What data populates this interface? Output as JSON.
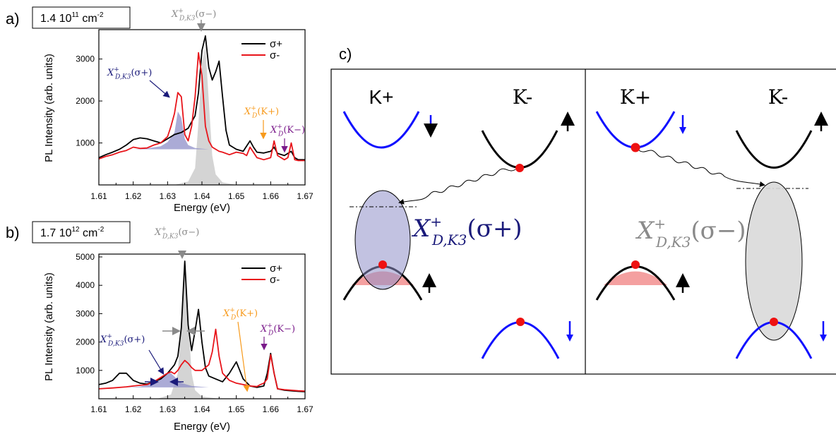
{
  "colors": {
    "black_series": "#000000",
    "red_series": "#e8141a",
    "gray_peak": "#cfcfcf",
    "blue_fill": "#8f8fc8",
    "navy": "#1a1a7a",
    "orange": "#f79a1c",
    "purple": "#7a1a8a",
    "gray_text": "#8a8a8a",
    "blue_band": "#1010ff",
    "pink_fill": "#f4a0a0",
    "red_dot": "#ee1111"
  },
  "chart_data": [
    {
      "type": "line",
      "panel": "a)",
      "density_label": {
        "base": "1.4 10",
        "exp": "11",
        "unit": " cm",
        "unit_exp": "-2"
      },
      "xlabel": "Energy (eV)",
      "ylabel": "PL Intensity (arb. units)",
      "xlim": [
        1.61,
        1.67
      ],
      "ylim": [
        0,
        3700
      ],
      "xticks": [
        "1.61",
        "1.62",
        "1.63",
        "1.64",
        "1.65",
        "1.66",
        "1.67"
      ],
      "yticks": [
        1000,
        2000,
        3000
      ],
      "legend": {
        "placement": "top-right",
        "entries": [
          "σ+",
          "σ-"
        ]
      },
      "series": [
        {
          "name": "σ+",
          "color": "black",
          "x": [
            1.61,
            1.612,
            1.614,
            1.616,
            1.618,
            1.62,
            1.622,
            1.624,
            1.626,
            1.628,
            1.63,
            1.632,
            1.634,
            1.636,
            1.637,
            1.638,
            1.639,
            1.64,
            1.641,
            1.642,
            1.643,
            1.644,
            1.645,
            1.646,
            1.647,
            1.648,
            1.65,
            1.652,
            1.654,
            1.655,
            1.656,
            1.658,
            1.66,
            1.661,
            1.662,
            1.664,
            1.666,
            1.667,
            1.668,
            1.67
          ],
          "y": [
            650,
            720,
            780,
            850,
            950,
            1080,
            1120,
            1100,
            1050,
            1000,
            1100,
            1200,
            1250,
            1350,
            1500,
            1650,
            2200,
            3200,
            3550,
            2800,
            2500,
            2700,
            2950,
            2100,
            1300,
            950,
            850,
            800,
            1050,
            900,
            780,
            760,
            800,
            900,
            750,
            700,
            800,
            650,
            600,
            600
          ]
        },
        {
          "name": "σ-",
          "color": "red",
          "x": [
            1.61,
            1.612,
            1.614,
            1.616,
            1.618,
            1.62,
            1.622,
            1.624,
            1.626,
            1.628,
            1.63,
            1.631,
            1.632,
            1.633,
            1.634,
            1.635,
            1.636,
            1.637,
            1.638,
            1.639,
            1.64,
            1.641,
            1.642,
            1.643,
            1.644,
            1.645,
            1.646,
            1.648,
            1.65,
            1.652,
            1.653,
            1.654,
            1.656,
            1.658,
            1.66,
            1.661,
            1.662,
            1.664,
            1.665,
            1.666,
            1.667,
            1.668,
            1.67
          ],
          "y": [
            620,
            680,
            720,
            780,
            820,
            900,
            870,
            880,
            950,
            1000,
            1150,
            1400,
            1700,
            2200,
            2100,
            1200,
            1050,
            1400,
            2100,
            3150,
            2600,
            1400,
            1050,
            900,
            850,
            800,
            780,
            720,
            780,
            750,
            700,
            900,
            650,
            600,
            650,
            1050,
            700,
            600,
            650,
            1000,
            600,
            580,
            580
          ]
        },
        {
          "name": "",
          "color": "gray_fill",
          "x": [
            1.632,
            1.636,
            1.638,
            1.639,
            1.64,
            1.641,
            1.642,
            1.643,
            1.644,
            1.646,
            1.65
          ],
          "y": [
            0,
            80,
            400,
            1500,
            2900,
            3300,
            2000,
            700,
            250,
            60,
            0
          ]
        },
        {
          "name": "",
          "color": "blue_fill",
          "x": [
            1.62,
            1.624,
            1.628,
            1.63,
            1.632,
            1.633,
            1.634,
            1.635,
            1.636,
            1.638,
            1.642
          ],
          "y": [
            850,
            870,
            920,
            1020,
            1250,
            1750,
            1600,
            1100,
            950,
            880,
            850
          ]
        }
      ],
      "annotations": [
        {
          "text": "X",
          "sup": "+",
          "sub": "D,K3",
          "tail": "(σ−)",
          "color": "gray",
          "pos": "top"
        },
        {
          "text": "X",
          "sup": "+",
          "sub": "D,K3",
          "tail": "(σ+)",
          "color": "navy",
          "pos": "left"
        },
        {
          "text": "X",
          "sup": "+",
          "sub": "D",
          "tail": "(K+)",
          "color": "orange",
          "pos": "right1"
        },
        {
          "text": "X",
          "sup": "+",
          "sub": "D",
          "tail": "(K−)",
          "color": "purple",
          "pos": "right2"
        }
      ]
    },
    {
      "type": "line",
      "panel": "b)",
      "density_label": {
        "base": "1.7 10",
        "exp": "12",
        "unit": " cm",
        "unit_exp": "-2"
      },
      "xlabel": "Energy (eV)",
      "ylabel": "PL Intensity (arb. units)",
      "xlim": [
        1.61,
        1.67
      ],
      "ylim": [
        0,
        5100
      ],
      "xticks": [
        "1.61",
        "1.62",
        "1.63",
        "1.64",
        "1.65",
        "1.66",
        "1.67"
      ],
      "yticks": [
        1000,
        2000,
        3000,
        4000,
        5000
      ],
      "legend": {
        "placement": "top-right",
        "entries": [
          "σ+",
          "σ-"
        ]
      },
      "series": [
        {
          "name": "σ+",
          "color": "black",
          "x": [
            1.61,
            1.612,
            1.614,
            1.616,
            1.618,
            1.62,
            1.622,
            1.624,
            1.626,
            1.628,
            1.63,
            1.632,
            1.633,
            1.634,
            1.635,
            1.636,
            1.637,
            1.638,
            1.639,
            1.64,
            1.641,
            1.642,
            1.644,
            1.646,
            1.648,
            1.65,
            1.652,
            1.654,
            1.656,
            1.658,
            1.659,
            1.66,
            1.661,
            1.662,
            1.664,
            1.666,
            1.668,
            1.67
          ],
          "y": [
            500,
            550,
            650,
            900,
            900,
            650,
            550,
            520,
            600,
            700,
            900,
            1200,
            1500,
            2500,
            4850,
            2600,
            1700,
            2400,
            3150,
            2000,
            1100,
            800,
            700,
            600,
            900,
            1300,
            700,
            450,
            400,
            450,
            900,
            1600,
            900,
            350,
            300,
            280,
            260,
            250
          ]
        },
        {
          "name": "σ-",
          "color": "red",
          "x": [
            1.61,
            1.614,
            1.618,
            1.62,
            1.624,
            1.626,
            1.628,
            1.63,
            1.631,
            1.632,
            1.633,
            1.634,
            1.635,
            1.636,
            1.637,
            1.638,
            1.64,
            1.642,
            1.643,
            1.644,
            1.645,
            1.646,
            1.648,
            1.65,
            1.652,
            1.654,
            1.656,
            1.657,
            1.658,
            1.659,
            1.66,
            1.661,
            1.662,
            1.664,
            1.666,
            1.668,
            1.67
          ],
          "y": [
            350,
            380,
            420,
            450,
            500,
            600,
            750,
            900,
            950,
            880,
            1000,
            1200,
            1350,
            1250,
            1100,
            1000,
            1000,
            1200,
            1650,
            2450,
            1500,
            900,
            650,
            550,
            500,
            450,
            430,
            500,
            550,
            700,
            1550,
            900,
            350,
            320,
            300,
            280,
            270
          ]
        },
        {
          "name": "",
          "color": "gray_fill",
          "x": [
            1.627,
            1.631,
            1.633,
            1.634,
            1.635,
            1.636,
            1.637,
            1.638,
            1.64,
            1.645
          ],
          "y": [
            0,
            150,
            900,
            2800,
            4800,
            2800,
            900,
            300,
            80,
            0
          ]
        },
        {
          "name": "",
          "color": "blue_fill",
          "x": [
            1.618,
            1.622,
            1.625,
            1.627,
            1.629,
            1.63,
            1.631,
            1.632,
            1.634,
            1.637,
            1.642
          ],
          "y": [
            400,
            430,
            520,
            700,
            850,
            930,
            900,
            780,
            560,
            450,
            400
          ]
        }
      ],
      "annotations": [
        {
          "text": "X",
          "sup": "+",
          "sub": "D,K3",
          "tail": "(σ−)",
          "color": "gray",
          "pos": "top"
        },
        {
          "text": "X",
          "sup": "+",
          "sub": "D,K3",
          "tail": "(σ+)",
          "color": "navy",
          "pos": "left"
        },
        {
          "text": "X",
          "sup": "+",
          "sub": "D",
          "tail": "(K+)",
          "color": "orange",
          "pos": "right1"
        },
        {
          "text": "X",
          "sup": "+",
          "sub": "D",
          "tail": "(K−)",
          "color": "purple",
          "pos": "right2"
        }
      ]
    }
  ],
  "diagram": {
    "panel": "c)",
    "valleys": [
      "K+",
      "K-",
      "K+",
      "K-"
    ],
    "left_label": {
      "text": "X",
      "sup": "+",
      "sub": "D,K3",
      "tail": "(σ+)"
    },
    "right_label": {
      "text": "X",
      "sup": "+",
      "sub": "D,K3",
      "tail": "(σ−)"
    }
  }
}
